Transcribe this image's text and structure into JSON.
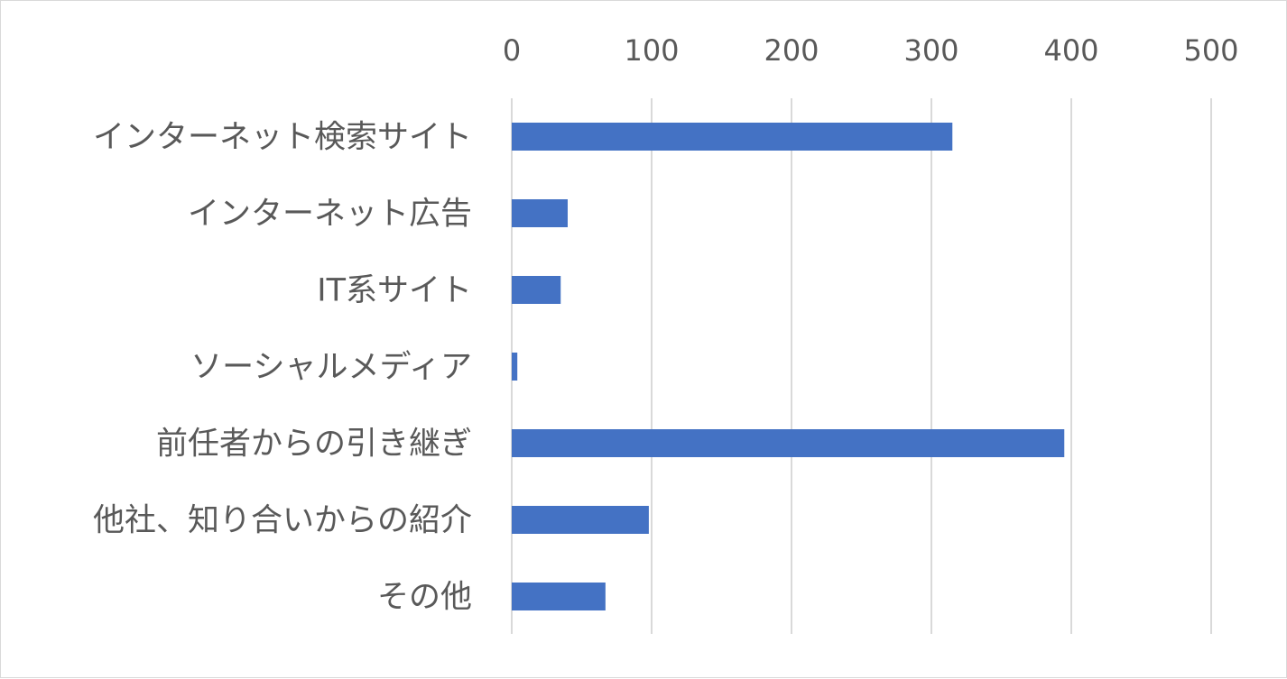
{
  "chart_data": {
    "type": "bar",
    "orientation": "horizontal",
    "categories": [
      "インターネット検索サイト",
      "インターネット広告",
      "IT系サイト",
      "ソーシャルメディア",
      "前任者からの引き継ぎ",
      "他社、知り合いからの紹介",
      "その他"
    ],
    "values": [
      315,
      40,
      35,
      4,
      395,
      98,
      67
    ],
    "xlim": [
      0,
      500
    ],
    "xticks": [
      "0",
      "100",
      "200",
      "300",
      "400",
      "500"
    ],
    "axis_position": "top",
    "grid": true,
    "legend": "none",
    "bar_color": "#4472C4"
  }
}
